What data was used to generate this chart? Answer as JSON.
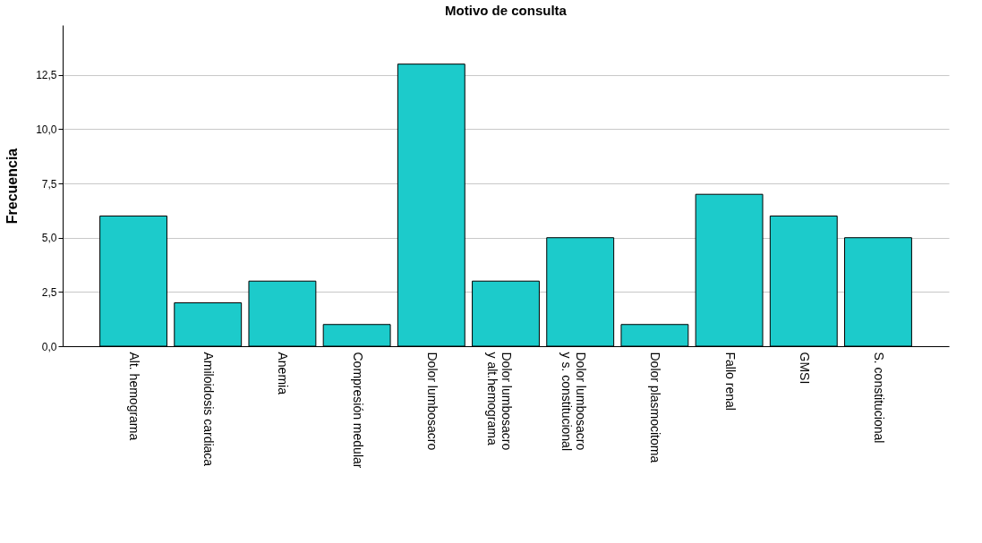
{
  "chart_data": {
    "type": "bar",
    "title": "Motivo de consulta",
    "ylabel": "Frecuencia",
    "categories": [
      "Alt. hemograma",
      "Amiloidosis cardiaca",
      "Anemia",
      "Compresión medular",
      "Dolor lumbosacro",
      "Dolor lumbosacro\ny alt.hemograma",
      "Dolor lumbosacro\ny s. constitucional",
      "Dolor plasmocitoma",
      "Fallo renal",
      "GMSI",
      "S. constitucional"
    ],
    "values": [
      6,
      2,
      3,
      1,
      13,
      3,
      5,
      1,
      7,
      6,
      5
    ],
    "color": "#1ccbcb",
    "ylim": [
      0,
      14.8
    ],
    "yticks": [
      {
        "value": 0,
        "label": "0,0"
      },
      {
        "value": 2.5,
        "label": "2,5"
      },
      {
        "value": 5,
        "label": "5,0"
      },
      {
        "value": 7.5,
        "label": "7,5"
      },
      {
        "value": 10,
        "label": "10,0"
      },
      {
        "value": 12.5,
        "label": "12,5"
      }
    ],
    "grid": "y"
  }
}
